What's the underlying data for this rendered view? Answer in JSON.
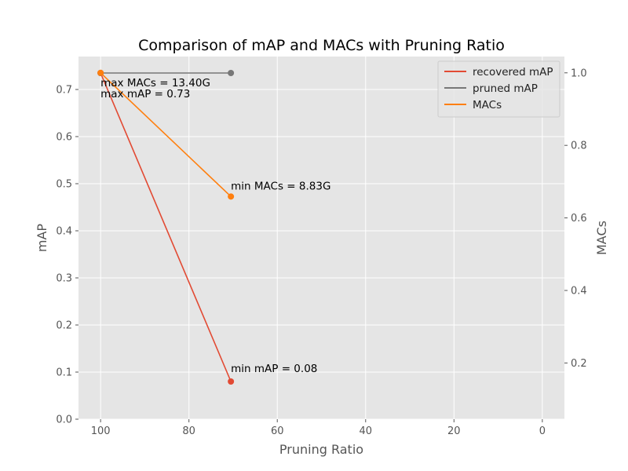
{
  "chart_data": {
    "type": "line",
    "title": "Comparison of mAP and MACs with Pruning Ratio",
    "xlabel": "Pruning Ratio",
    "ylabel_left": "mAP",
    "ylabel_right": "MACs",
    "x_inverted": true,
    "xlim": [
      105,
      -5
    ],
    "ylim_left": [
      0,
      0.77
    ],
    "ylim_right": [
      0.045,
      1.045
    ],
    "x_ticks": [
      100,
      80,
      60,
      40,
      20,
      0
    ],
    "y_left_ticks": [
      "0.0",
      "0.1",
      "0.2",
      "0.3",
      "0.4",
      "0.5",
      "0.6",
      "0.7"
    ],
    "y_right_ticks": [
      "0.2",
      "0.4",
      "0.6",
      "0.8",
      "1.0"
    ],
    "grid": true,
    "legend_position": "top-right",
    "series": [
      {
        "name": "recovered mAP",
        "axis": "left",
        "color": "#e24a33",
        "x": [
          100,
          70.5
        ],
        "y": [
          0.735,
          0.08
        ]
      },
      {
        "name": "pruned mAP",
        "axis": "left",
        "color": "#777777",
        "x": [
          100,
          70.5
        ],
        "y": [
          0.735,
          0.735
        ]
      },
      {
        "name": "MACs",
        "axis": "right",
        "color": "#ff7f0e",
        "x": [
          100,
          70.5
        ],
        "y": [
          1.0,
          0.659
        ]
      }
    ],
    "annotations": [
      {
        "text": "max MACs = 13.40G",
        "x": 100,
        "y": 0.735,
        "axis": "left",
        "dy": 17
      },
      {
        "text": "max mAP = 0.73",
        "x": 100,
        "y": 0.735,
        "axis": "left",
        "dy": 31
      },
      {
        "text": "min MACs = 8.83G",
        "x": 70.5,
        "y": 0.659,
        "axis": "right",
        "dy": -9
      },
      {
        "text": "min mAP = 0.08",
        "x": 70.5,
        "y": 0.08,
        "axis": "left",
        "dy": -12
      }
    ]
  }
}
